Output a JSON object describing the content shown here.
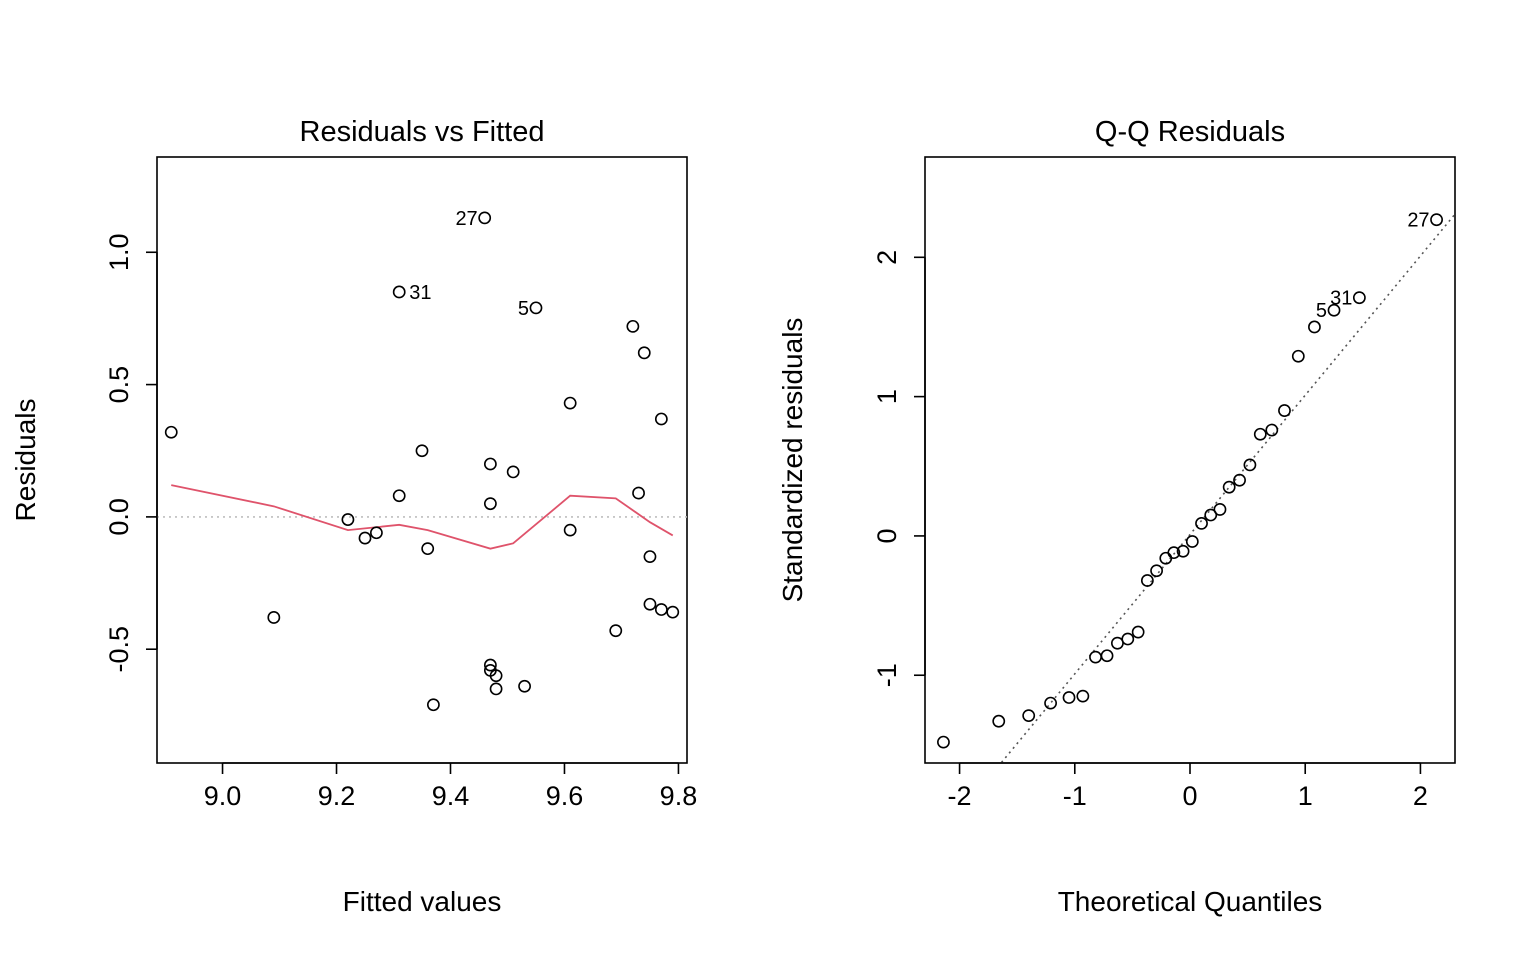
{
  "chart_data": [
    {
      "type": "scatter",
      "title": "Residuals vs Fitted",
      "xlabel": "Fitted values",
      "ylabel": "Residuals",
      "xlim": [
        8.885,
        9.815
      ],
      "ylim": [
        -0.93,
        1.36
      ],
      "xticks": [
        9.0,
        9.2,
        9.4,
        9.6,
        9.8
      ],
      "xtick_labels": [
        "9.0",
        "9.2",
        "9.4",
        "9.6",
        "9.8"
      ],
      "yticks": [
        -0.5,
        0.0,
        0.5,
        1.0
      ],
      "ytick_labels": [
        "-0.5",
        "0.0",
        "0.5",
        "1.0"
      ],
      "points": [
        [
          8.91,
          0.32
        ],
        [
          9.09,
          -0.38
        ],
        [
          9.22,
          -0.01
        ],
        [
          9.25,
          -0.08
        ],
        [
          9.27,
          -0.06
        ],
        [
          9.31,
          0.85
        ],
        [
          9.31,
          0.08
        ],
        [
          9.35,
          0.25
        ],
        [
          9.36,
          -0.12
        ],
        [
          9.37,
          -0.71
        ],
        [
          9.46,
          1.13
        ],
        [
          9.47,
          -0.56
        ],
        [
          9.47,
          -0.58
        ],
        [
          9.48,
          -0.6
        ],
        [
          9.48,
          -0.65
        ],
        [
          9.47,
          0.2
        ],
        [
          9.47,
          0.05
        ],
        [
          9.51,
          0.17
        ],
        [
          9.53,
          -0.64
        ],
        [
          9.55,
          0.79
        ],
        [
          9.61,
          0.43
        ],
        [
          9.61,
          -0.05
        ],
        [
          9.69,
          -0.43
        ],
        [
          9.72,
          0.72
        ],
        [
          9.73,
          0.09
        ],
        [
          9.74,
          0.62
        ],
        [
          9.75,
          -0.15
        ],
        [
          9.75,
          -0.33
        ],
        [
          9.77,
          0.37
        ],
        [
          9.77,
          -0.35
        ],
        [
          9.79,
          -0.36
        ]
      ],
      "smooth_line": {
        "color": "#DF536B",
        "x": [
          8.91,
          9.09,
          9.22,
          9.31,
          9.36,
          9.47,
          9.51,
          9.61,
          9.69,
          9.75,
          9.79
        ],
        "y": [
          0.12,
          0.04,
          -0.05,
          -0.03,
          -0.05,
          -0.12,
          -0.1,
          0.08,
          0.07,
          -0.02,
          -0.07
        ]
      },
      "reference_line": {
        "y": 0.0,
        "color": "#BEBEBE",
        "style": "dotted"
      },
      "point_labels": [
        {
          "text": "27",
          "x": 9.46,
          "y": 1.13,
          "side": "left"
        },
        {
          "text": "31",
          "x": 9.31,
          "y": 0.85,
          "side": "right"
        },
        {
          "text": "5",
          "x": 9.55,
          "y": 0.79,
          "side": "left"
        }
      ]
    },
    {
      "type": "scatter",
      "title": "Q-Q Residuals",
      "xlabel": "Theoretical Quantiles",
      "ylabel": "Standardized residuals",
      "xlim": [
        -2.3,
        2.3
      ],
      "ylim": [
        -1.63,
        2.72
      ],
      "xticks": [
        -2,
        -1,
        0,
        1,
        2
      ],
      "xtick_labels": [
        "-2",
        "-1",
        "0",
        "1",
        "2"
      ],
      "yticks": [
        -1,
        0,
        1,
        2
      ],
      "ytick_labels": [
        "-1",
        "0",
        "1",
        "2"
      ],
      "points": [
        [
          -2.14,
          -1.48
        ],
        [
          -1.66,
          -1.33
        ],
        [
          -1.4,
          -1.29
        ],
        [
          -1.21,
          -1.2
        ],
        [
          -1.05,
          -1.16
        ],
        [
          -0.93,
          -1.15
        ],
        [
          -0.82,
          -0.87
        ],
        [
          -0.72,
          -0.86
        ],
        [
          -0.63,
          -0.77
        ],
        [
          -0.54,
          -0.74
        ],
        [
          -0.45,
          -0.69
        ],
        [
          -0.37,
          -0.32
        ],
        [
          -0.29,
          -0.25
        ],
        [
          -0.21,
          -0.16
        ],
        [
          -0.14,
          -0.12
        ],
        [
          -0.06,
          -0.11
        ],
        [
          0.02,
          -0.04
        ],
        [
          0.1,
          0.09
        ],
        [
          0.18,
          0.15
        ],
        [
          0.26,
          0.19
        ],
        [
          0.34,
          0.35
        ],
        [
          0.43,
          0.4
        ],
        [
          0.52,
          0.51
        ],
        [
          0.61,
          0.73
        ],
        [
          0.71,
          0.76
        ],
        [
          0.82,
          0.9
        ],
        [
          0.94,
          1.29
        ],
        [
          1.08,
          1.5
        ],
        [
          1.25,
          1.62
        ],
        [
          1.47,
          1.71
        ],
        [
          2.14,
          2.27
        ]
      ],
      "reference_line": {
        "intercept": 0.01,
        "slope": 1.0,
        "color": "#555555",
        "style": "dotted"
      },
      "point_labels": [
        {
          "text": "27",
          "x": 2.14,
          "y": 2.27,
          "side": "left"
        },
        {
          "text": "31",
          "x": 1.47,
          "y": 1.71,
          "side": "left"
        },
        {
          "text": "5",
          "x": 1.25,
          "y": 1.62,
          "side": "left"
        }
      ]
    }
  ]
}
